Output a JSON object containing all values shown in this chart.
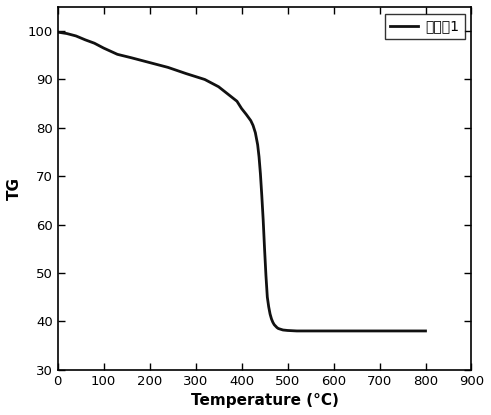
{
  "title": "",
  "xlabel": "Temperature (°C)",
  "ylabel": "TG",
  "xlim": [
    0,
    900
  ],
  "ylim": [
    30,
    105
  ],
  "xticks": [
    0,
    100,
    200,
    300,
    400,
    500,
    600,
    700,
    800,
    900
  ],
  "yticks": [
    30,
    40,
    50,
    60,
    70,
    80,
    90,
    100
  ],
  "line_color": "#111111",
  "line_width": 2.0,
  "legend_label": "比较例1",
  "background_color": "#ffffff",
  "x_points": [
    0,
    20,
    40,
    60,
    80,
    100,
    130,
    160,
    200,
    240,
    280,
    320,
    350,
    370,
    390,
    400,
    410,
    420,
    425,
    430,
    435,
    438,
    441,
    444,
    447,
    450,
    453,
    456,
    459,
    462,
    465,
    468,
    471,
    474,
    477,
    480,
    490,
    500,
    520,
    560,
    600,
    700,
    800
  ],
  "y_points": [
    99.8,
    99.5,
    99.0,
    98.2,
    97.5,
    96.5,
    95.2,
    94.5,
    93.5,
    92.5,
    91.2,
    90.0,
    88.5,
    87.0,
    85.5,
    84.0,
    82.8,
    81.5,
    80.5,
    79.0,
    76.5,
    74.0,
    70.5,
    66.0,
    61.0,
    55.0,
    49.5,
    45.0,
    43.0,
    41.5,
    40.5,
    39.8,
    39.3,
    39.0,
    38.7,
    38.5,
    38.2,
    38.1,
    38.0,
    38.0,
    38.0,
    38.0,
    38.0
  ]
}
